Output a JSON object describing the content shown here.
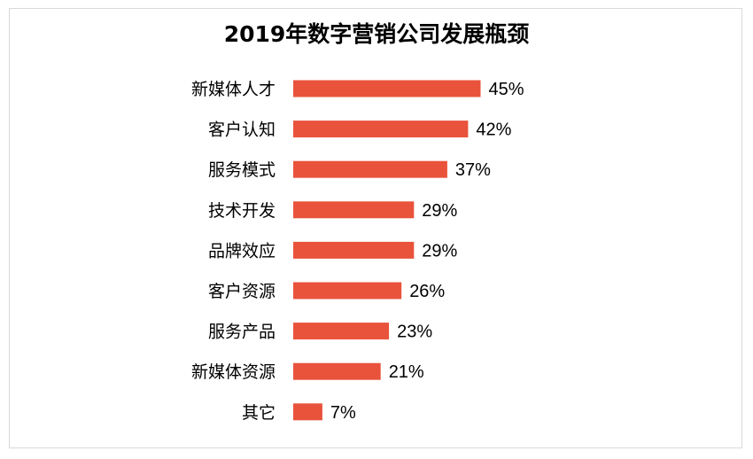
{
  "chart_data": {
    "type": "bar",
    "orientation": "horizontal",
    "title": "2019年数字营销公司发展瓶颈",
    "categories": [
      "新媒体人才",
      "客户认知",
      "服务模式",
      "技术开发",
      "品牌效应",
      "客户资源",
      "服务产品",
      "新媒体资源",
      "其它"
    ],
    "values": [
      45,
      42,
      37,
      29,
      29,
      26,
      23,
      21,
      7
    ],
    "value_labels": [
      "45%",
      "42%",
      "37%",
      "29%",
      "29%",
      "26%",
      "23%",
      "21%",
      "7%"
    ],
    "unit": "%",
    "xlabel": "",
    "ylabel": "",
    "grid": false,
    "legend": "none",
    "bar_color": "#E9533B"
  }
}
